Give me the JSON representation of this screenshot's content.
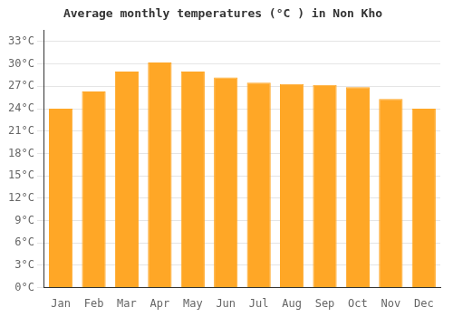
{
  "chart_data": {
    "type": "bar",
    "title": "Average monthly temperatures (°C ) in Non Kho",
    "categories": [
      "Jan",
      "Feb",
      "Mar",
      "Apr",
      "May",
      "Jun",
      "Jul",
      "Aug",
      "Sep",
      "Oct",
      "Nov",
      "Dec"
    ],
    "values": [
      24.0,
      26.3,
      29.0,
      30.2,
      29.0,
      28.2,
      27.5,
      27.3,
      27.2,
      26.9,
      25.3,
      24.0
    ],
    "color": "#FFA726",
    "ylim": [
      0,
      34.5
    ],
    "yticks": [
      {
        "value": 0,
        "label": "0°C"
      },
      {
        "value": 3,
        "label": "3°C"
      },
      {
        "value": 6,
        "label": "6°C"
      },
      {
        "value": 9,
        "label": "9°C"
      },
      {
        "value": 12,
        "label": "12°C"
      },
      {
        "value": 15,
        "label": "15°C"
      },
      {
        "value": 18,
        "label": "18°C"
      },
      {
        "value": 21,
        "label": "21°C"
      },
      {
        "value": 24,
        "label": "24°C"
      },
      {
        "value": 27,
        "label": "27°C"
      },
      {
        "value": 30,
        "label": "30°C"
      },
      {
        "value": 33,
        "label": "33°C"
      }
    ],
    "grid": true
  }
}
